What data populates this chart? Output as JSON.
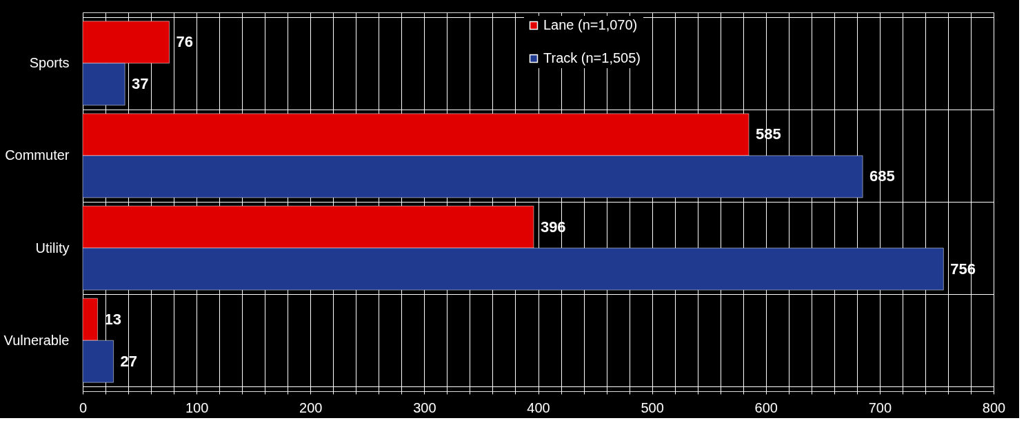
{
  "chart_data": {
    "type": "bar",
    "orientation": "horizontal",
    "categories": [
      "Sports",
      "Commuter",
      "Utility",
      "Vulnerable"
    ],
    "series": [
      {
        "name": "Lane (n=1,070)",
        "color": "#e00000",
        "values": [
          76,
          585,
          396,
          13
        ]
      },
      {
        "name": "Track (n=1,505)",
        "color": "#1f3a8f",
        "values": [
          37,
          685,
          756,
          27
        ]
      }
    ],
    "xlim": [
      0,
      800
    ],
    "xticks": [
      0,
      {
        "value": 20,
        "label": null
      },
      {
        "value": 40,
        "label": null
      },
      {
        "value": 60,
        "label": null
      },
      {
        "value": 80,
        "label": null
      },
      100,
      {
        "value": 120,
        "label": null
      },
      {
        "value": 140,
        "label": null
      },
      {
        "value": 160,
        "label": null
      },
      {
        "value": 180,
        "label": null
      },
      200,
      {
        "value": 220,
        "label": null
      },
      {
        "value": 240,
        "label": null
      },
      {
        "value": 260,
        "label": null
      },
      {
        "value": 280,
        "label": null
      },
      300,
      {
        "value": 320,
        "label": null
      },
      {
        "value": 340,
        "label": null
      },
      {
        "value": 360,
        "label": null
      },
      {
        "value": 380,
        "label": null
      },
      400,
      {
        "value": 420,
        "label": null
      },
      {
        "value": 440,
        "label": null
      },
      {
        "value": 460,
        "label": null
      },
      {
        "value": 480,
        "label": null
      },
      500,
      {
        "value": 520,
        "label": null
      },
      {
        "value": 540,
        "label": null
      },
      {
        "value": 560,
        "label": null
      },
      {
        "value": 580,
        "label": null
      },
      600,
      {
        "value": 620,
        "label": null
      },
      {
        "value": 640,
        "label": null
      },
      {
        "value": 660,
        "label": null
      },
      {
        "value": 680,
        "label": null
      },
      700,
      {
        "value": 720,
        "label": null
      },
      {
        "value": 740,
        "label": null
      },
      {
        "value": 760,
        "label": null
      },
      {
        "value": 780,
        "label": null
      },
      800
    ],
    "grid": true,
    "legend": "top",
    "data_labels": true
  }
}
